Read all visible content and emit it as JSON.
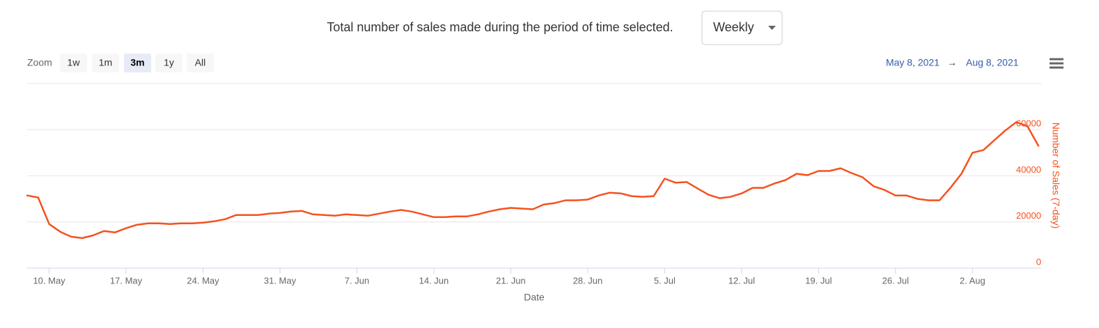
{
  "header": {
    "text": "Total number of sales made during the period of time selected.",
    "dropdown": "Weekly"
  },
  "zoom": {
    "label": "Zoom",
    "buttons": [
      "1w",
      "1m",
      "3m",
      "1y",
      "All"
    ],
    "selected": "3m"
  },
  "range": {
    "from": "May 8, 2021",
    "arrow": "→",
    "to": "Aug 8, 2021"
  },
  "chart_data": {
    "type": "line",
    "x_label": "Date",
    "y_label": "Number of Sales (7-day)",
    "x": [
      "2021-05-08",
      "2021-05-09",
      "2021-05-10",
      "2021-05-11",
      "2021-05-12",
      "2021-05-13",
      "2021-05-14",
      "2021-05-15",
      "2021-05-16",
      "2021-05-17",
      "2021-05-18",
      "2021-05-19",
      "2021-05-20",
      "2021-05-21",
      "2021-05-22",
      "2021-05-23",
      "2021-05-24",
      "2021-05-25",
      "2021-05-26",
      "2021-05-27",
      "2021-05-28",
      "2021-05-29",
      "2021-05-30",
      "2021-05-31",
      "2021-06-01",
      "2021-06-02",
      "2021-06-03",
      "2021-06-04",
      "2021-06-05",
      "2021-06-06",
      "2021-06-07",
      "2021-06-08",
      "2021-06-09",
      "2021-06-10",
      "2021-06-11",
      "2021-06-12",
      "2021-06-13",
      "2021-06-14",
      "2021-06-15",
      "2021-06-16",
      "2021-06-17",
      "2021-06-18",
      "2021-06-19",
      "2021-06-20",
      "2021-06-21",
      "2021-06-22",
      "2021-06-23",
      "2021-06-24",
      "2021-06-25",
      "2021-06-26",
      "2021-06-27",
      "2021-06-28",
      "2021-06-29",
      "2021-06-30",
      "2021-07-01",
      "2021-07-02",
      "2021-07-03",
      "2021-07-04",
      "2021-07-05",
      "2021-07-06",
      "2021-07-07",
      "2021-07-08",
      "2021-07-09",
      "2021-07-10",
      "2021-07-11",
      "2021-07-12",
      "2021-07-13",
      "2021-07-14",
      "2021-07-15",
      "2021-07-16",
      "2021-07-17",
      "2021-07-18",
      "2021-07-19",
      "2021-07-20",
      "2021-07-21",
      "2021-07-22",
      "2021-07-23",
      "2021-07-24",
      "2021-07-25",
      "2021-07-26",
      "2021-07-27",
      "2021-07-28",
      "2021-07-29",
      "2021-07-30",
      "2021-07-31",
      "2021-08-01",
      "2021-08-02",
      "2021-08-03",
      "2021-08-04",
      "2021-08-05",
      "2021-08-06",
      "2021-08-07",
      "2021-08-08"
    ],
    "series": [
      {
        "name": "Number of Sales (7-day)",
        "color": "#f5511e",
        "values": [
          31500,
          30600,
          19100,
          15800,
          13600,
          13000,
          14200,
          16100,
          15500,
          17300,
          18800,
          19400,
          19400,
          19100,
          19400,
          19400,
          19700,
          20300,
          21200,
          23000,
          23000,
          23000,
          23600,
          23900,
          24500,
          24800,
          23300,
          23000,
          22700,
          23300,
          23000,
          22700,
          23600,
          24500,
          25200,
          24500,
          23300,
          22100,
          22100,
          22400,
          22400,
          23300,
          24500,
          25500,
          26100,
          25800,
          25500,
          27600,
          28200,
          29400,
          29400,
          29700,
          31500,
          32700,
          32400,
          31200,
          30900,
          31200,
          38800,
          37000,
          37300,
          34500,
          31800,
          30300,
          30900,
          32400,
          34800,
          34800,
          36700,
          38200,
          40900,
          40300,
          42100,
          42100,
          43300,
          41200,
          39400,
          35500,
          33900,
          31500,
          31500,
          30000,
          29400,
          29400,
          34800,
          40900,
          50000,
          51200,
          55500,
          59700,
          63300,
          61500,
          53000
        ]
      }
    ],
    "xlim": [
      "2021-05-08",
      "2021-08-08"
    ],
    "xticks": [
      {
        "value": "2021-05-10",
        "label": "10. May"
      },
      {
        "value": "2021-05-17",
        "label": "17. May"
      },
      {
        "value": "2021-05-24",
        "label": "24. May"
      },
      {
        "value": "2021-05-31",
        "label": "31. May"
      },
      {
        "value": "2021-06-07",
        "label": "7. Jun"
      },
      {
        "value": "2021-06-14",
        "label": "14. Jun"
      },
      {
        "value": "2021-06-21",
        "label": "21. Jun"
      },
      {
        "value": "2021-06-28",
        "label": "28. Jun"
      },
      {
        "value": "2021-07-05",
        "label": "5. Jul"
      },
      {
        "value": "2021-07-12",
        "label": "12. Jul"
      },
      {
        "value": "2021-07-19",
        "label": "19. Jul"
      },
      {
        "value": "2021-07-26",
        "label": "26. Jul"
      },
      {
        "value": "2021-08-02",
        "label": "2. Aug"
      }
    ],
    "ylim": [
      0,
      80000
    ],
    "yticks": [
      0,
      20000,
      40000,
      60000
    ],
    "grid": true
  }
}
